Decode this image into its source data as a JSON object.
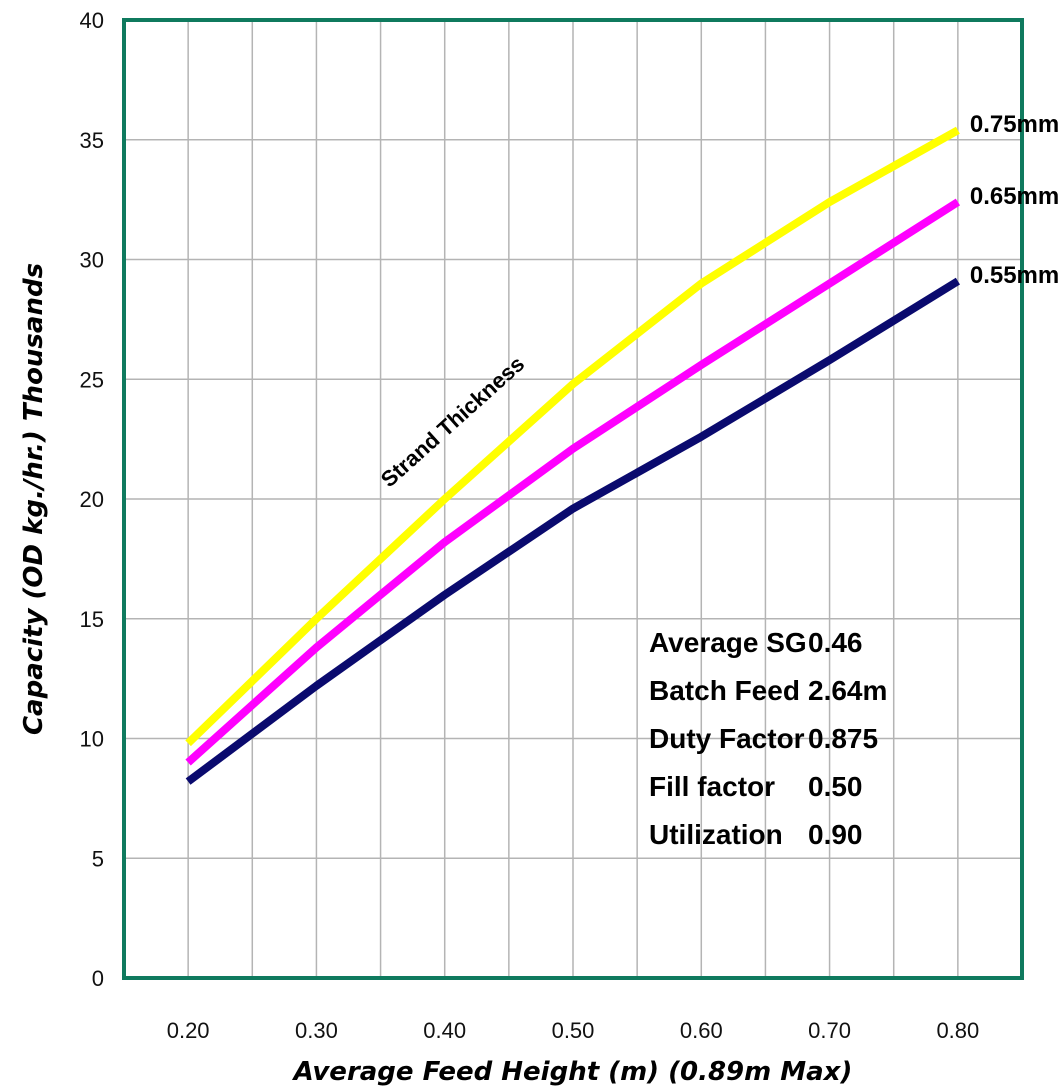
{
  "chart_data": {
    "type": "line",
    "xlabel": "Average Feed Height (m) (0.89m Max)",
    "ylabel": "Capacity (OD kg./hr.) Thousands",
    "xlim": [
      0.15,
      0.85
    ],
    "ylim": [
      0,
      40
    ],
    "x_ticks": [
      "0.20",
      "0.30",
      "0.40",
      "0.50",
      "0.60",
      "0.70",
      "0.80"
    ],
    "y_ticks": [
      "0",
      "5",
      "10",
      "15",
      "20",
      "25",
      "30",
      "35",
      "40"
    ],
    "grid": true,
    "series_annotation": "Strand Thickness",
    "series": [
      {
        "name": "0.75mm",
        "color": "#ffff00",
        "points": [
          [
            0.2,
            9.8
          ],
          [
            0.3,
            15.0
          ],
          [
            0.4,
            20.0
          ],
          [
            0.5,
            24.8
          ],
          [
            0.6,
            29.0
          ],
          [
            0.7,
            32.4
          ],
          [
            0.8,
            35.4
          ]
        ]
      },
      {
        "name": "0.65mm",
        "color": "#ff00ff",
        "points": [
          [
            0.2,
            9.0
          ],
          [
            0.3,
            13.8
          ],
          [
            0.4,
            18.2
          ],
          [
            0.5,
            22.1
          ],
          [
            0.6,
            25.6
          ],
          [
            0.7,
            29.0
          ],
          [
            0.8,
            32.4
          ]
        ]
      },
      {
        "name": "0.55mm",
        "color": "#0a0a6e",
        "points": [
          [
            0.2,
            8.2
          ],
          [
            0.3,
            12.2
          ],
          [
            0.4,
            16.0
          ],
          [
            0.5,
            19.6
          ],
          [
            0.6,
            22.6
          ],
          [
            0.7,
            25.8
          ],
          [
            0.8,
            29.1
          ]
        ]
      }
    ],
    "parameters": [
      {
        "label": "Average SG",
        "value": "0.46"
      },
      {
        "label": "Batch Feed",
        "value": "2.64m"
      },
      {
        "label": "Duty Factor",
        "value": "0.875"
      },
      {
        "label": "Fill factor",
        "value": "0.50"
      },
      {
        "label": "Utilization",
        "value": "0.90"
      }
    ],
    "colors": {
      "frame": "#0f7a5e",
      "grid": "#b4b4b4"
    }
  }
}
